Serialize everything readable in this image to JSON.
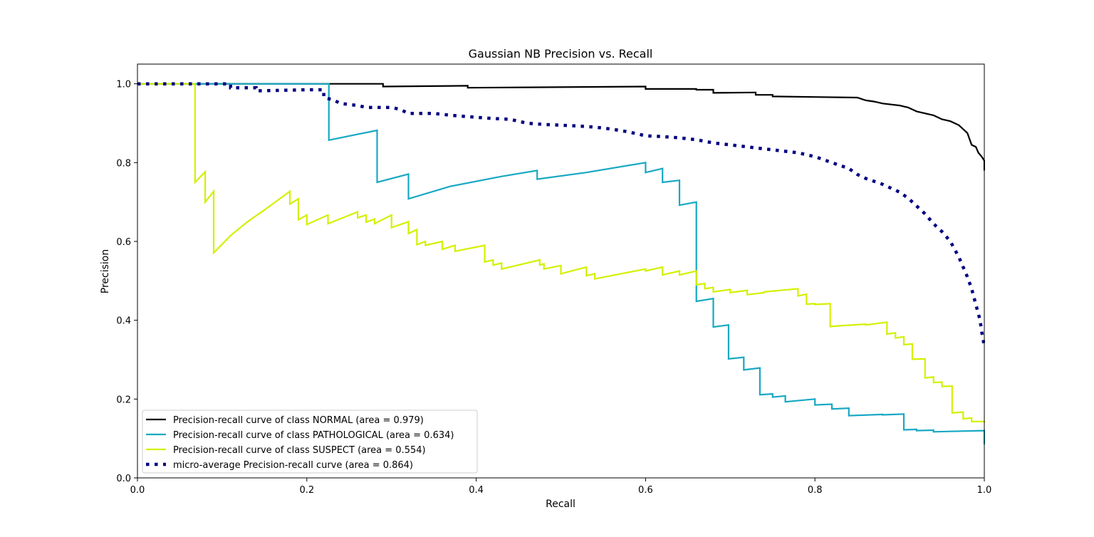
{
  "chart_data": {
    "type": "line",
    "title": "Gaussian NB Precision vs. Recall",
    "xlabel": "Recall",
    "ylabel": "Precision",
    "xlim": [
      0.0,
      1.0
    ],
    "ylim": [
      0.0,
      1.05
    ],
    "xticks": [
      "0.0",
      "0.2",
      "0.4",
      "0.6",
      "0.8",
      "1.0"
    ],
    "yticks": [
      "0.0",
      "0.2",
      "0.4",
      "0.6",
      "0.8",
      "1.0"
    ],
    "grid": false,
    "legend_position": "lower-left",
    "series": [
      {
        "name": "Precision-recall curve of class NORMAL (area = 0.979)",
        "color": "#000000",
        "style": "solid",
        "points": [
          [
            0,
            1.0
          ],
          [
            0.29,
            1.0
          ],
          [
            0.29,
            0.993
          ],
          [
            0.39,
            0.995
          ],
          [
            0.39,
            0.99
          ],
          [
            0.6,
            0.993
          ],
          [
            0.6,
            0.987
          ],
          [
            0.66,
            0.987
          ],
          [
            0.66,
            0.985
          ],
          [
            0.68,
            0.985
          ],
          [
            0.68,
            0.977
          ],
          [
            0.73,
            0.978
          ],
          [
            0.73,
            0.972
          ],
          [
            0.75,
            0.972
          ],
          [
            0.75,
            0.968
          ],
          [
            0.85,
            0.965
          ],
          [
            0.86,
            0.958
          ],
          [
            0.87,
            0.955
          ],
          [
            0.88,
            0.95
          ],
          [
            0.9,
            0.945
          ],
          [
            0.91,
            0.94
          ],
          [
            0.92,
            0.93
          ],
          [
            0.94,
            0.92
          ],
          [
            0.95,
            0.91
          ],
          [
            0.96,
            0.905
          ],
          [
            0.97,
            0.895
          ],
          [
            0.98,
            0.875
          ],
          [
            0.985,
            0.845
          ],
          [
            0.99,
            0.84
          ],
          [
            0.993,
            0.825
          ],
          [
            0.997,
            0.815
          ],
          [
            1.0,
            0.805
          ],
          [
            1.0,
            0.78
          ]
        ]
      },
      {
        "name": "Precision-recall curve of class PATHOLOGICAL (area = 0.634)",
        "color": "#17a8c3",
        "style": "solid",
        "points": [
          [
            0,
            1.0
          ],
          [
            0.226,
            1.0
          ],
          [
            0.226,
            0.857
          ],
          [
            0.283,
            0.882
          ],
          [
            0.283,
            0.75
          ],
          [
            0.32,
            0.771
          ],
          [
            0.32,
            0.708
          ],
          [
            0.37,
            0.74
          ],
          [
            0.43,
            0.765
          ],
          [
            0.472,
            0.78
          ],
          [
            0.472,
            0.758
          ],
          [
            0.53,
            0.775
          ],
          [
            0.6,
            0.8
          ],
          [
            0.6,
            0.775
          ],
          [
            0.62,
            0.785
          ],
          [
            0.62,
            0.75
          ],
          [
            0.64,
            0.755
          ],
          [
            0.64,
            0.692
          ],
          [
            0.66,
            0.7
          ],
          [
            0.66,
            0.448
          ],
          [
            0.68,
            0.455
          ],
          [
            0.68,
            0.383
          ],
          [
            0.698,
            0.388
          ],
          [
            0.698,
            0.302
          ],
          [
            0.716,
            0.306
          ],
          [
            0.716,
            0.274
          ],
          [
            0.735,
            0.279
          ],
          [
            0.735,
            0.211
          ],
          [
            0.75,
            0.213
          ],
          [
            0.75,
            0.205
          ],
          [
            0.765,
            0.208
          ],
          [
            0.765,
            0.193
          ],
          [
            0.8,
            0.2
          ],
          [
            0.8,
            0.185
          ],
          [
            0.82,
            0.187
          ],
          [
            0.82,
            0.175
          ],
          [
            0.84,
            0.177
          ],
          [
            0.84,
            0.158
          ],
          [
            0.88,
            0.161
          ],
          [
            0.88,
            0.16
          ],
          [
            0.905,
            0.162
          ],
          [
            0.905,
            0.122
          ],
          [
            0.92,
            0.123
          ],
          [
            0.92,
            0.12
          ],
          [
            0.94,
            0.121
          ],
          [
            0.94,
            0.117
          ],
          [
            0.96,
            0.118
          ],
          [
            1.0,
            0.12
          ],
          [
            1.0,
            0.085
          ]
        ]
      },
      {
        "name": "Precision-recall curve of class SUSPECT (area = 0.554)",
        "color": "#d4f000",
        "style": "solid",
        "points": [
          [
            0,
            1.0
          ],
          [
            0.068,
            1.0
          ],
          [
            0.068,
            0.75
          ],
          [
            0.08,
            0.777
          ],
          [
            0.08,
            0.7
          ],
          [
            0.09,
            0.727
          ],
          [
            0.09,
            0.571
          ],
          [
            0.11,
            0.615
          ],
          [
            0.13,
            0.65
          ],
          [
            0.15,
            0.68
          ],
          [
            0.18,
            0.727
          ],
          [
            0.18,
            0.695
          ],
          [
            0.19,
            0.708
          ],
          [
            0.19,
            0.655
          ],
          [
            0.2,
            0.667
          ],
          [
            0.2,
            0.643
          ],
          [
            0.225,
            0.667
          ],
          [
            0.225,
            0.645
          ],
          [
            0.26,
            0.675
          ],
          [
            0.26,
            0.66
          ],
          [
            0.27,
            0.667
          ],
          [
            0.27,
            0.649
          ],
          [
            0.28,
            0.657
          ],
          [
            0.28,
            0.645
          ],
          [
            0.3,
            0.667
          ],
          [
            0.3,
            0.635
          ],
          [
            0.32,
            0.65
          ],
          [
            0.32,
            0.62
          ],
          [
            0.33,
            0.63
          ],
          [
            0.33,
            0.592
          ],
          [
            0.34,
            0.6
          ],
          [
            0.34,
            0.59
          ],
          [
            0.36,
            0.6
          ],
          [
            0.36,
            0.58
          ],
          [
            0.375,
            0.59
          ],
          [
            0.375,
            0.575
          ],
          [
            0.41,
            0.59
          ],
          [
            0.41,
            0.548
          ],
          [
            0.42,
            0.553
          ],
          [
            0.42,
            0.54
          ],
          [
            0.43,
            0.545
          ],
          [
            0.43,
            0.53
          ],
          [
            0.475,
            0.553
          ],
          [
            0.475,
            0.54
          ],
          [
            0.48,
            0.543
          ],
          [
            0.48,
            0.53
          ],
          [
            0.5,
            0.539
          ],
          [
            0.5,
            0.518
          ],
          [
            0.53,
            0.535
          ],
          [
            0.53,
            0.513
          ],
          [
            0.54,
            0.518
          ],
          [
            0.54,
            0.505
          ],
          [
            0.6,
            0.53
          ],
          [
            0.6,
            0.525
          ],
          [
            0.62,
            0.535
          ],
          [
            0.62,
            0.515
          ],
          [
            0.64,
            0.525
          ],
          [
            0.64,
            0.515
          ],
          [
            0.66,
            0.525
          ],
          [
            0.66,
            0.49
          ],
          [
            0.67,
            0.493
          ],
          [
            0.67,
            0.48
          ],
          [
            0.68,
            0.483
          ],
          [
            0.68,
            0.472
          ],
          [
            0.7,
            0.478
          ],
          [
            0.7,
            0.47
          ],
          [
            0.72,
            0.476
          ],
          [
            0.72,
            0.465
          ],
          [
            0.74,
            0.47
          ],
          [
            0.74,
            0.472
          ],
          [
            0.78,
            0.48
          ],
          [
            0.78,
            0.462
          ],
          [
            0.79,
            0.466
          ],
          [
            0.79,
            0.441
          ],
          [
            0.8,
            0.442
          ],
          [
            0.8,
            0.44
          ],
          [
            0.818,
            0.442
          ],
          [
            0.818,
            0.384
          ],
          [
            0.83,
            0.386
          ],
          [
            0.83,
            0.386
          ],
          [
            0.86,
            0.39
          ],
          [
            0.86,
            0.388
          ],
          [
            0.885,
            0.395
          ],
          [
            0.885,
            0.365
          ],
          [
            0.895,
            0.368
          ],
          [
            0.895,
            0.355
          ],
          [
            0.905,
            0.358
          ],
          [
            0.905,
            0.338
          ],
          [
            0.915,
            0.34
          ],
          [
            0.915,
            0.301
          ],
          [
            0.93,
            0.302
          ],
          [
            0.93,
            0.254
          ],
          [
            0.94,
            0.256
          ],
          [
            0.94,
            0.242
          ],
          [
            0.95,
            0.243
          ],
          [
            0.95,
            0.232
          ],
          [
            0.962,
            0.233
          ],
          [
            0.962,
            0.165
          ],
          [
            0.975,
            0.167
          ],
          [
            0.975,
            0.15
          ],
          [
            0.985,
            0.152
          ],
          [
            0.985,
            0.143
          ],
          [
            1.0,
            0.143
          ],
          [
            1.0,
            0.14
          ]
        ]
      },
      {
        "name": "micro-average Precision-recall curve (area = 0.864)",
        "color": "#000080",
        "style": "dotted",
        "points": [
          [
            0,
            1.0
          ],
          [
            0.11,
            1.0
          ],
          [
            0.11,
            0.99
          ],
          [
            0.14,
            0.99
          ],
          [
            0.14,
            0.982
          ],
          [
            0.2,
            0.985
          ],
          [
            0.22,
            0.985
          ],
          [
            0.22,
            0.965
          ],
          [
            0.23,
            0.96
          ],
          [
            0.24,
            0.95
          ],
          [
            0.26,
            0.945
          ],
          [
            0.27,
            0.94
          ],
          [
            0.3,
            0.94
          ],
          [
            0.31,
            0.935
          ],
          [
            0.32,
            0.925
          ],
          [
            0.35,
            0.925
          ],
          [
            0.37,
            0.92
          ],
          [
            0.4,
            0.915
          ],
          [
            0.42,
            0.912
          ],
          [
            0.44,
            0.91
          ],
          [
            0.46,
            0.9
          ],
          [
            0.48,
            0.897
          ],
          [
            0.5,
            0.895
          ],
          [
            0.52,
            0.893
          ],
          [
            0.54,
            0.89
          ],
          [
            0.56,
            0.885
          ],
          [
            0.58,
            0.878
          ],
          [
            0.6,
            0.868
          ],
          [
            0.62,
            0.866
          ],
          [
            0.64,
            0.863
          ],
          [
            0.66,
            0.858
          ],
          [
            0.68,
            0.85
          ],
          [
            0.7,
            0.845
          ],
          [
            0.72,
            0.84
          ],
          [
            0.74,
            0.835
          ],
          [
            0.76,
            0.83
          ],
          [
            0.78,
            0.825
          ],
          [
            0.8,
            0.815
          ],
          [
            0.82,
            0.8
          ],
          [
            0.84,
            0.785
          ],
          [
            0.85,
            0.77
          ],
          [
            0.86,
            0.76
          ],
          [
            0.88,
            0.745
          ],
          [
            0.89,
            0.735
          ],
          [
            0.9,
            0.725
          ],
          [
            0.91,
            0.71
          ],
          [
            0.92,
            0.69
          ],
          [
            0.93,
            0.67
          ],
          [
            0.94,
            0.645
          ],
          [
            0.95,
            0.625
          ],
          [
            0.96,
            0.6
          ],
          [
            0.965,
            0.58
          ],
          [
            0.97,
            0.56
          ],
          [
            0.975,
            0.535
          ],
          [
            0.98,
            0.51
          ],
          [
            0.985,
            0.48
          ],
          [
            0.99,
            0.44
          ],
          [
            0.995,
            0.4
          ],
          [
            0.997,
            0.37
          ],
          [
            1.0,
            0.335
          ]
        ]
      }
    ]
  }
}
